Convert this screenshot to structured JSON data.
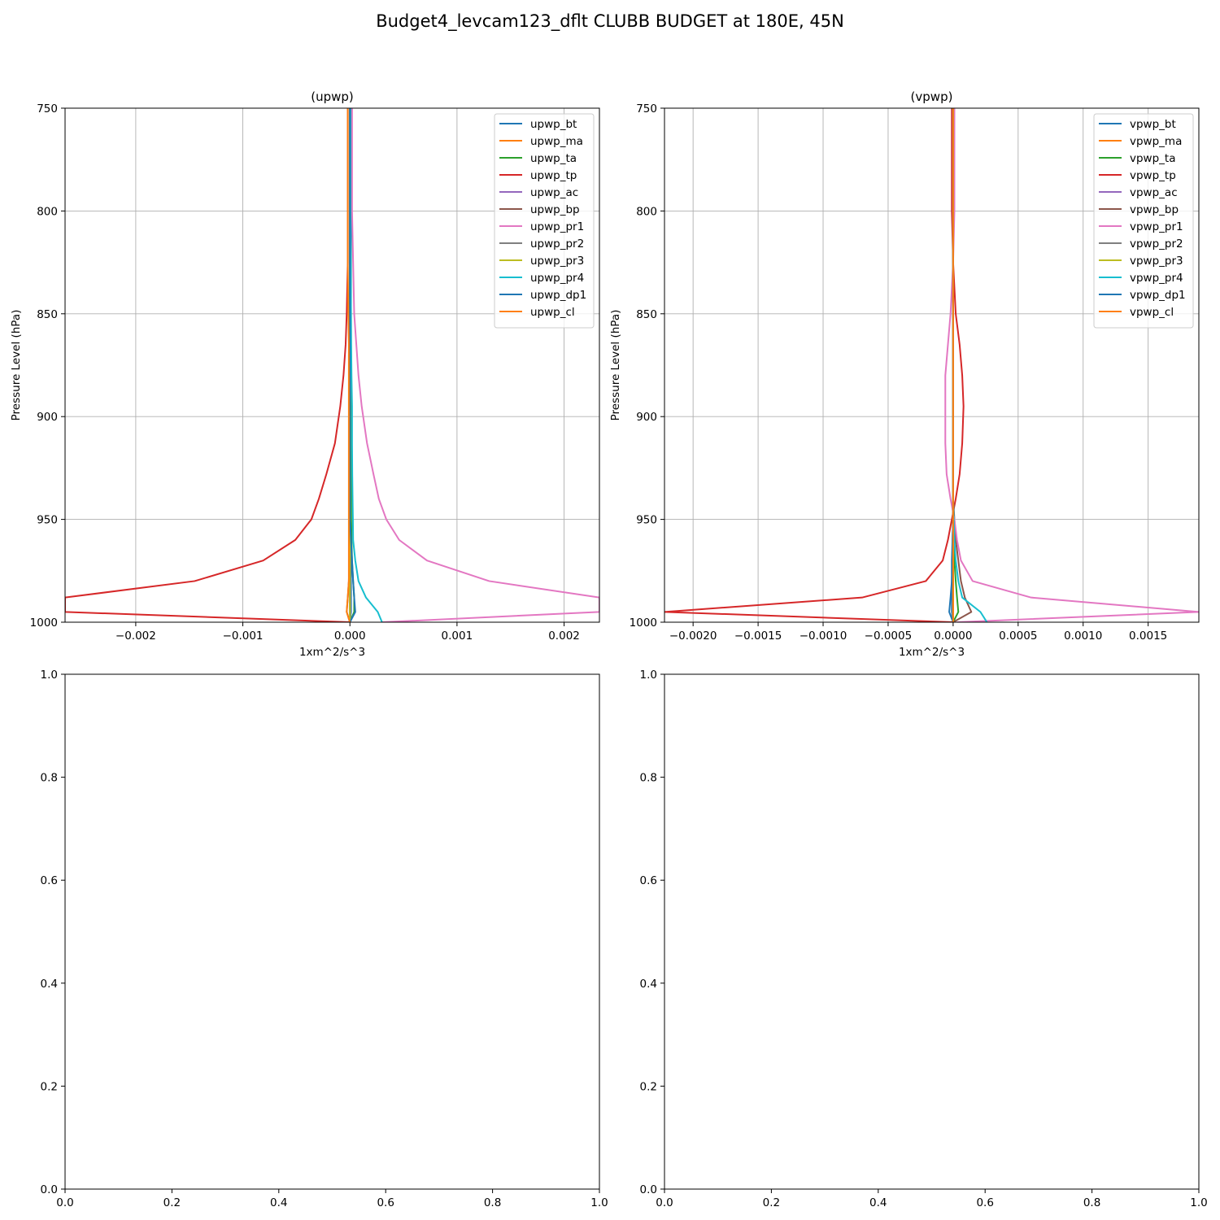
{
  "suptitle": "Budget4_levcam123_dflt CLUBB BUDGET at 180E, 45N",
  "chart_data": [
    {
      "type": "line",
      "title": "(upwp)",
      "xlabel": "1xm^2/s^3",
      "ylabel": "Pressure Level (hPa)",
      "xlim": [
        -0.00266,
        0.00233
      ],
      "ylim": [
        1000,
        750
      ],
      "xticks": [
        -0.002,
        -0.001,
        0.0,
        0.001,
        0.002
      ],
      "xtick_labels": [
        "−0.002",
        "−0.001",
        "0.000",
        "0.001",
        "0.002"
      ],
      "yticks": [
        750,
        800,
        850,
        900,
        950,
        1000
      ],
      "ytick_labels": [
        "750",
        "800",
        "850",
        "900",
        "950",
        "1000"
      ],
      "grid": true,
      "legend_position": "upper right",
      "levels": [
        750,
        775,
        800,
        825,
        850,
        865,
        880,
        895,
        913,
        928,
        940,
        950,
        960,
        970,
        980,
        988,
        995,
        1000
      ],
      "series": [
        {
          "name": "upwp_bt",
          "color": "#1f77b4",
          "values": [
            1e-05,
            1e-05,
            1e-05,
            1e-05,
            1e-05,
            1e-05,
            1e-05,
            1e-05,
            1e-05,
            1e-05,
            1e-05,
            1e-05,
            1e-05,
            1e-05,
            1e-05,
            1e-05,
            1e-05,
            0.0
          ]
        },
        {
          "name": "upwp_ma",
          "color": "#ff7f0e",
          "values": [
            0.0,
            0.0,
            0.0,
            0.0,
            0.0,
            0.0,
            0.0,
            0.0,
            0.0,
            0.0,
            0.0,
            0.0,
            0.0,
            0.0,
            0.0,
            0.0,
            0.0,
            0.0
          ]
        },
        {
          "name": "upwp_ta",
          "color": "#2ca02c",
          "values": [
            5e-06,
            5e-06,
            5e-06,
            8e-06,
            1e-05,
            1e-05,
            1.2e-05,
            1.2e-05,
            1.2e-05,
            1.2e-05,
            1.2e-05,
            1.2e-05,
            1.5e-05,
            2e-05,
            3e-05,
            4e-05,
            4e-05,
            0.0
          ]
        },
        {
          "name": "upwp_tp",
          "color": "#d62728",
          "values": [
            -2e-05,
            -2e-05,
            -2e-05,
            -2e-05,
            -3e-05,
            -4e-05,
            -6e-05,
            -9e-05,
            -0.00014,
            -0.00022,
            -0.00029,
            -0.00036,
            -0.00051,
            -0.00081,
            -0.00145,
            -0.00266,
            -0.00266,
            0.0
          ]
        },
        {
          "name": "upwp_ac",
          "color": "#9467bd",
          "values": [
            0.0,
            0.0,
            0.0,
            0.0,
            0.0,
            0.0,
            0.0,
            0.0,
            0.0,
            0.0,
            0.0,
            0.0,
            0.0,
            0.0,
            0.0,
            0.0,
            0.0,
            0.0
          ]
        },
        {
          "name": "upwp_bp",
          "color": "#8c564b",
          "values": [
            0.0,
            0.0,
            0.0,
            0.0,
            0.0,
            0.0,
            0.0,
            0.0,
            0.0,
            0.0,
            0.0,
            0.0,
            0.0,
            -5e-06,
            -1e-05,
            -2e-05,
            -3e-05,
            0.0
          ]
        },
        {
          "name": "upwp_pr1",
          "color": "#e377c2",
          "values": [
            2e-05,
            2e-05,
            2e-05,
            3e-05,
            4e-05,
            6e-05,
            8e-05,
            0.00011,
            0.00016,
            0.00022,
            0.00027,
            0.00034,
            0.00046,
            0.00072,
            0.0013,
            0.00233,
            0.00233,
            0.0003
          ]
        },
        {
          "name": "upwp_pr2",
          "color": "#7f7f7f",
          "values": [
            0.0,
            0.0,
            0.0,
            0.0,
            0.0,
            0.0,
            0.0,
            0.0,
            0.0,
            0.0,
            0.0,
            0.0,
            0.0,
            0.0,
            0.0,
            0.0,
            0.0,
            0.0
          ]
        },
        {
          "name": "upwp_pr3",
          "color": "#bcbd22",
          "values": [
            0.0,
            0.0,
            0.0,
            0.0,
            0.0,
            0.0,
            0.0,
            0.0,
            0.0,
            0.0,
            0.0,
            0.0,
            0.0,
            0.0,
            0.0,
            0.0,
            0.0,
            0.0
          ]
        },
        {
          "name": "upwp_pr4",
          "color": "#17becf",
          "values": [
            5e-06,
            5e-06,
            5e-06,
            8e-06,
            1e-05,
            1.2e-05,
            1.5e-05,
            2e-05,
            2e-05,
            2.2e-05,
            2.5e-05,
            2.8e-05,
            3e-05,
            5e-05,
            8e-05,
            0.00015,
            0.00026,
            0.0003
          ]
        },
        {
          "name": "upwp_dp1",
          "color": "#1f77b4",
          "values": [
            0.0,
            0.0,
            0.0,
            0.0,
            0.0,
            0.0,
            0.0,
            0.0,
            0.0,
            0.0,
            0.0,
            0.0,
            1e-05,
            2e-05,
            3e-05,
            4e-05,
            5e-05,
            0.0
          ]
        },
        {
          "name": "upwp_cl",
          "color": "#ff7f0e",
          "values": [
            -2e-05,
            -2e-05,
            -2e-05,
            -2e-05,
            -1.5e-05,
            -1e-05,
            -1e-05,
            -1e-05,
            -1e-05,
            -1e-05,
            -1e-05,
            -1e-05,
            -1e-05,
            -1e-05,
            -1e-05,
            -2e-05,
            -3e-05,
            0.0
          ]
        }
      ]
    },
    {
      "type": "line",
      "title": "(vpwp)",
      "xlabel": "1xm^2/s^3",
      "ylabel": "Pressure Level (hPa)",
      "xlim": [
        -0.00222,
        0.00189
      ],
      "ylim": [
        1000,
        750
      ],
      "xticks": [
        -0.002,
        -0.0015,
        -0.001,
        -0.0005,
        0.0,
        0.0005,
        0.001,
        0.0015
      ],
      "xtick_labels": [
        "−0.0020",
        "−0.0015",
        "−0.0010",
        "−0.0005",
        "0.0000",
        "0.0005",
        "0.0010",
        "0.0015"
      ],
      "yticks": [
        750,
        800,
        850,
        900,
        950,
        1000
      ],
      "ytick_labels": [
        "750",
        "800",
        "850",
        "900",
        "950",
        "1000"
      ],
      "grid": true,
      "legend_position": "upper right",
      "levels": [
        750,
        775,
        800,
        825,
        850,
        865,
        880,
        895,
        913,
        928,
        940,
        950,
        960,
        970,
        980,
        988,
        995,
        1000
      ],
      "series": [
        {
          "name": "vpwp_bt",
          "color": "#1f77b4",
          "values": [
            0.0,
            0.0,
            0.0,
            0.0,
            0.0,
            0.0,
            0.0,
            0.0,
            0.0,
            0.0,
            0.0,
            0.0,
            -5e-06,
            -5e-06,
            -1e-05,
            -1e-05,
            -1e-05,
            0.0
          ]
        },
        {
          "name": "vpwp_ma",
          "color": "#ff7f0e",
          "values": [
            0.0,
            0.0,
            0.0,
            0.0,
            0.0,
            0.0,
            0.0,
            0.0,
            0.0,
            0.0,
            0.0,
            0.0,
            0.0,
            0.0,
            0.0,
            0.0,
            0.0,
            0.0
          ]
        },
        {
          "name": "vpwp_ta",
          "color": "#2ca02c",
          "values": [
            0.0,
            0.0,
            0.0,
            0.0,
            0.0,
            0.0,
            0.0,
            0.0,
            0.0,
            0.0,
            0.0,
            0.0,
            0.0,
            1e-05,
            2e-05,
            3e-05,
            4e-05,
            0.0
          ]
        },
        {
          "name": "vpwp_tp",
          "color": "#d62728",
          "values": [
            -1e-05,
            -1e-05,
            -1e-05,
            0.0,
            2e-05,
            5e-05,
            7e-05,
            8e-05,
            7e-05,
            5e-05,
            2e-05,
            -1e-05,
            -4e-05,
            -8e-05,
            -0.00021,
            -0.0007,
            -0.00222,
            0.0
          ]
        },
        {
          "name": "vpwp_ac",
          "color": "#9467bd",
          "values": [
            0.0,
            0.0,
            0.0,
            0.0,
            0.0,
            0.0,
            0.0,
            0.0,
            0.0,
            0.0,
            0.0,
            0.0,
            0.0,
            0.0,
            0.0,
            0.0,
            0.0,
            0.0
          ]
        },
        {
          "name": "vpwp_bp",
          "color": "#8c564b",
          "values": [
            0.0,
            0.0,
            0.0,
            0.0,
            0.0,
            0.0,
            0.0,
            0.0,
            0.0,
            0.0,
            0.0,
            1e-05,
            2e-05,
            4e-05,
            6e-05,
            9e-05,
            0.00014,
            0.0
          ]
        },
        {
          "name": "vpwp_pr1",
          "color": "#e377c2",
          "values": [
            1e-05,
            1e-05,
            1e-05,
            0.0,
            -2e-05,
            -4e-05,
            -6e-05,
            -6e-05,
            -6e-05,
            -5e-05,
            -2e-05,
            1e-05,
            3e-05,
            6e-05,
            0.00015,
            0.0006,
            0.00189,
            3e-05
          ]
        },
        {
          "name": "vpwp_pr2",
          "color": "#7f7f7f",
          "values": [
            0.0,
            0.0,
            0.0,
            0.0,
            0.0,
            0.0,
            0.0,
            0.0,
            0.0,
            0.0,
            0.0,
            0.0,
            0.0,
            0.0,
            0.0,
            0.0,
            0.0,
            0.0
          ]
        },
        {
          "name": "vpwp_pr3",
          "color": "#bcbd22",
          "values": [
            0.0,
            0.0,
            0.0,
            0.0,
            0.0,
            0.0,
            0.0,
            0.0,
            0.0,
            0.0,
            0.0,
            0.0,
            0.0,
            0.0,
            0.0,
            0.0,
            0.0,
            0.0
          ]
        },
        {
          "name": "vpwp_pr4",
          "color": "#17becf",
          "values": [
            0.0,
            0.0,
            0.0,
            0.0,
            0.0,
            0.0,
            0.0,
            0.0,
            0.0,
            0.0,
            0.0,
            5e-06,
            1e-05,
            2e-05,
            4e-05,
            7e-05,
            0.00021,
            0.00026
          ]
        },
        {
          "name": "vpwp_dp1",
          "color": "#1f77b4",
          "values": [
            0.0,
            0.0,
            0.0,
            0.0,
            0.0,
            0.0,
            0.0,
            0.0,
            0.0,
            0.0,
            0.0,
            0.0,
            -5e-06,
            -1e-05,
            -1e-05,
            -2e-05,
            -3e-05,
            0.0
          ]
        },
        {
          "name": "vpwp_cl",
          "color": "#ff7f0e",
          "values": [
            0.0,
            0.0,
            0.0,
            0.0,
            0.0,
            0.0,
            0.0,
            0.0,
            0.0,
            0.0,
            0.0,
            0.0,
            0.0,
            0.0,
            0.0,
            0.0,
            0.0,
            0.0
          ]
        }
      ]
    },
    {
      "type": "line",
      "title": "",
      "xlim": [
        0.0,
        1.0
      ],
      "ylim": [
        0.0,
        1.0
      ],
      "xticks": [
        0.0,
        0.2,
        0.4,
        0.6,
        0.8,
        1.0
      ],
      "xtick_labels": [
        "0.0",
        "0.2",
        "0.4",
        "0.6",
        "0.8",
        "1.0"
      ],
      "yticks": [
        0.0,
        0.2,
        0.4,
        0.6,
        0.8,
        1.0
      ],
      "ytick_labels": [
        "0.0",
        "0.2",
        "0.4",
        "0.6",
        "0.8",
        "1.0"
      ],
      "grid": false,
      "series": []
    },
    {
      "type": "line",
      "title": "",
      "xlim": [
        0.0,
        1.0
      ],
      "ylim": [
        0.0,
        1.0
      ],
      "xticks": [
        0.0,
        0.2,
        0.4,
        0.6,
        0.8,
        1.0
      ],
      "xtick_labels": [
        "0.0",
        "0.2",
        "0.4",
        "0.6",
        "0.8",
        "1.0"
      ],
      "yticks": [
        0.0,
        0.2,
        0.4,
        0.6,
        0.8,
        1.0
      ],
      "ytick_labels": [
        "0.0",
        "0.2",
        "0.4",
        "0.6",
        "0.8",
        "1.0"
      ],
      "grid": false,
      "series": []
    }
  ]
}
